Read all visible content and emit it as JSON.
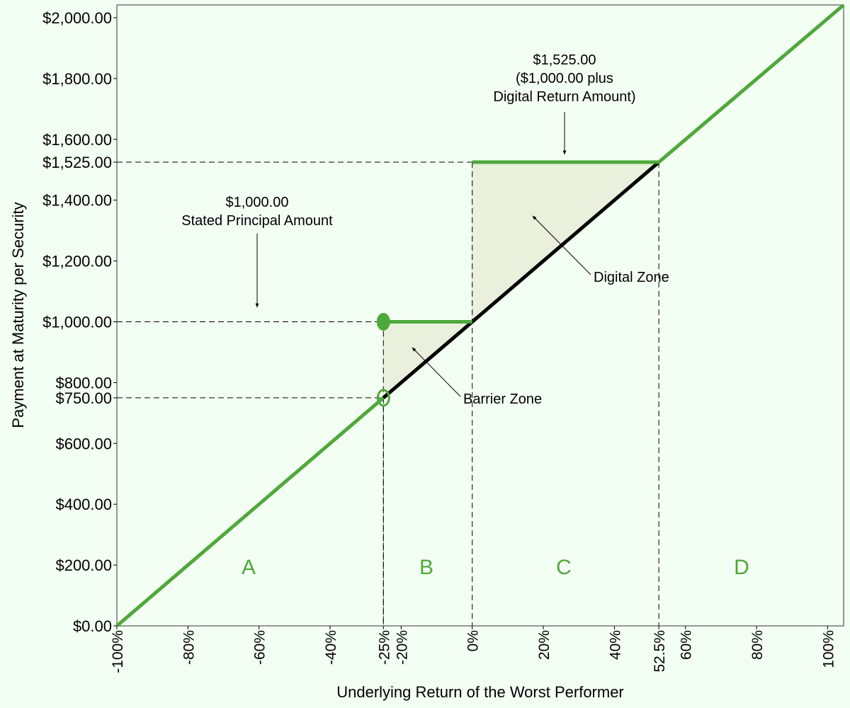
{
  "chart_data": {
    "type": "line",
    "x_label": "Underlying Return of the Worst Performer",
    "y_label": "Payment at Maturity per Security",
    "xlim": [
      -100,
      104.5
    ],
    "ylim": [
      0,
      2042
    ],
    "xticks": [
      {
        "value": -100,
        "label": "-100%"
      },
      {
        "value": -80,
        "label": "-80%"
      },
      {
        "value": -60,
        "label": "-60%"
      },
      {
        "value": -40,
        "label": "-40%"
      },
      {
        "value": -25,
        "label": "-25%"
      },
      {
        "value": -20,
        "label": "-20%"
      },
      {
        "value": 0,
        "label": "0%"
      },
      {
        "value": 20,
        "label": "20%"
      },
      {
        "value": 40,
        "label": "40%"
      },
      {
        "value": 52.5,
        "label": "52.5%"
      },
      {
        "value": 60,
        "label": "60%"
      },
      {
        "value": 80,
        "label": "80%"
      },
      {
        "value": 100,
        "label": "100%"
      }
    ],
    "yticks": [
      {
        "value": 0,
        "label": "$0.00"
      },
      {
        "value": 200,
        "label": "$200.00"
      },
      {
        "value": 400,
        "label": "$400.00"
      },
      {
        "value": 600,
        "label": "$600.00"
      },
      {
        "value": 750,
        "label": "$750.00"
      },
      {
        "value": 800,
        "label": "$800.00"
      },
      {
        "value": 1000,
        "label": "$1,000.00"
      },
      {
        "value": 1200,
        "label": "$1,200.00"
      },
      {
        "value": 1400,
        "label": "$1,400.00"
      },
      {
        "value": 1525,
        "label": "$1,525.00"
      },
      {
        "value": 1600,
        "label": "$1,600.00"
      },
      {
        "value": 1800,
        "label": "$1,800.00"
      },
      {
        "value": 2000,
        "label": "$2,000.00"
      }
    ],
    "shaded_areas": [
      {
        "color": "#e9f0dc",
        "x": [
          -25,
          -25,
          0
        ],
        "y": [
          750,
          1000,
          1000
        ]
      },
      {
        "color": "#e9f0dc",
        "x": [
          0,
          0,
          52.5
        ],
        "y": [
          1000,
          1525,
          1525
        ]
      }
    ],
    "guides": [
      {
        "x": 0,
        "y": 1525
      },
      {
        "x": 52.5,
        "y": 1525
      },
      {
        "x": -25,
        "y": 1000
      },
      {
        "x": -25,
        "y": 750
      }
    ],
    "series": [
      {
        "color": "#000000",
        "x": [
          -25,
          52.5
        ],
        "values": [
          750,
          1525
        ]
      },
      {
        "color": "#4ea83a",
        "x": [
          -100,
          -25,
          null,
          -25,
          0,
          null,
          0,
          52.5,
          104.5
        ],
        "values": [
          0,
          750,
          null,
          1000,
          1000,
          null,
          1525,
          1525,
          2042
        ]
      }
    ],
    "markers": [
      {
        "x": -25,
        "y": 1000,
        "filled": true,
        "color": "#4ea83a"
      },
      {
        "x": -25,
        "y": 750,
        "filled": false,
        "color": "#4ea83a"
      }
    ],
    "annotations": [
      {
        "lines": [
          "$1,525.00",
          "($1,000.00 plus",
          "Digital Return Amount)"
        ]
      },
      {
        "lines": [
          "$1,000.00",
          "Stated Principal Amount"
        ]
      },
      {
        "lines": [
          "Digital Zone"
        ]
      },
      {
        "lines": [
          "Barrier Zone"
        ]
      }
    ],
    "zone_labels": [
      "A",
      "B",
      "C",
      "D"
    ],
    "zone_color": "#4ea83a"
  }
}
